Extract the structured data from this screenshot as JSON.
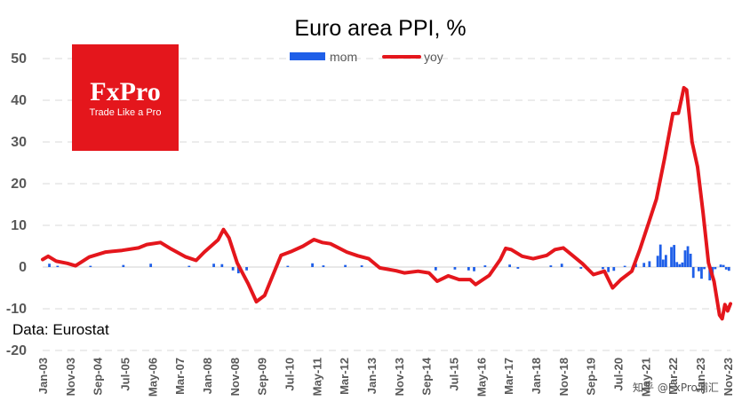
{
  "chart_data": {
    "type": "bar+line",
    "title": "Euro area PPI, %",
    "ylim": [
      -20,
      50
    ],
    "yticks": [
      50,
      40,
      30,
      20,
      10,
      0,
      -10,
      -20
    ],
    "grid": true,
    "legend": {
      "position": "top-center",
      "entries": [
        {
          "name": "mom",
          "type": "bar",
          "color": "#1f5fe8"
        },
        {
          "name": "yoy",
          "type": "line",
          "color": "#e4161c"
        }
      ]
    },
    "x_tick_labels": [
      "Jan-03",
      "Nov-03",
      "Sep-04",
      "Jul-05",
      "May-06",
      "Mar-07",
      "Jan-08",
      "Nov-08",
      "Sep-09",
      "Jul-10",
      "May-11",
      "Mar-12",
      "Jan-13",
      "Nov-13",
      "Sep-14",
      "Jul-15",
      "May-16",
      "Mar-17",
      "Jan-18",
      "Nov-18",
      "Sep-19",
      "Jul-20",
      "May-21",
      "Mar-22",
      "Jan-23",
      "Nov-23"
    ],
    "x_start": "2003-01",
    "x_end": "2023-11",
    "series": [
      {
        "name": "yoy",
        "type": "line",
        "points": [
          [
            "2003-01",
            1.8
          ],
          [
            "2003-03",
            2.6
          ],
          [
            "2003-06",
            1.4
          ],
          [
            "2003-10",
            0.9
          ],
          [
            "2004-01",
            0.3
          ],
          [
            "2004-06",
            2.4
          ],
          [
            "2004-12",
            3.6
          ],
          [
            "2005-06",
            4.0
          ],
          [
            "2005-12",
            4.6
          ],
          [
            "2006-03",
            5.4
          ],
          [
            "2006-08",
            5.9
          ],
          [
            "2006-12",
            4.3
          ],
          [
            "2007-05",
            2.5
          ],
          [
            "2007-09",
            1.6
          ],
          [
            "2007-12",
            3.6
          ],
          [
            "2008-05",
            6.5
          ],
          [
            "2008-07",
            9.0
          ],
          [
            "2008-09",
            7.0
          ],
          [
            "2008-12",
            1.0
          ],
          [
            "2009-04",
            -4.0
          ],
          [
            "2009-07",
            -8.3
          ],
          [
            "2009-10",
            -6.8
          ],
          [
            "2010-01",
            -2.0
          ],
          [
            "2010-04",
            2.8
          ],
          [
            "2010-08",
            3.8
          ],
          [
            "2010-12",
            5.0
          ],
          [
            "2011-04",
            6.6
          ],
          [
            "2011-07",
            5.9
          ],
          [
            "2011-10",
            5.6
          ],
          [
            "2012-04",
            3.6
          ],
          [
            "2012-08",
            2.7
          ],
          [
            "2012-12",
            2.0
          ],
          [
            "2013-04",
            -0.2
          ],
          [
            "2013-10",
            -0.9
          ],
          [
            "2014-01",
            -1.4
          ],
          [
            "2014-06",
            -1.0
          ],
          [
            "2014-10",
            -1.4
          ],
          [
            "2015-01",
            -3.4
          ],
          [
            "2015-05",
            -2.1
          ],
          [
            "2015-09",
            -3.0
          ],
          [
            "2016-01",
            -3.0
          ],
          [
            "2016-03",
            -4.2
          ],
          [
            "2016-08",
            -2.0
          ],
          [
            "2016-12",
            1.8
          ],
          [
            "2017-02",
            4.5
          ],
          [
            "2017-04",
            4.2
          ],
          [
            "2017-08",
            2.6
          ],
          [
            "2017-12",
            2.0
          ],
          [
            "2018-05",
            2.8
          ],
          [
            "2018-08",
            4.2
          ],
          [
            "2018-11",
            4.6
          ],
          [
            "2019-02",
            3.0
          ],
          [
            "2019-06",
            0.8
          ],
          [
            "2019-10",
            -1.8
          ],
          [
            "2020-02",
            -1.0
          ],
          [
            "2020-05",
            -5.0
          ],
          [
            "2020-08",
            -3.0
          ],
          [
            "2020-12",
            -1.0
          ],
          [
            "2021-03",
            4.3
          ],
          [
            "2021-06",
            10.3
          ],
          [
            "2021-09",
            16.3
          ],
          [
            "2021-12",
            26.2
          ],
          [
            "2022-03",
            36.8
          ],
          [
            "2022-05",
            36.9
          ],
          [
            "2022-07",
            43.0
          ],
          [
            "2022-08",
            42.5
          ],
          [
            "2022-10",
            30.0
          ],
          [
            "2022-12",
            24.0
          ],
          [
            "2023-02",
            13.0
          ],
          [
            "2023-04",
            1.0
          ],
          [
            "2023-06",
            -3.4
          ],
          [
            "2023-08",
            -11.5
          ],
          [
            "2023-09",
            -12.4
          ],
          [
            "2023-10",
            -9.0
          ],
          [
            "2023-11",
            -10.5
          ],
          [
            "2023-12",
            -8.8
          ]
        ]
      },
      {
        "name": "mom",
        "type": "bar",
        "points": [
          [
            "2003-03",
            0.8
          ],
          [
            "2003-06",
            0.3
          ],
          [
            "2004-06",
            0.3
          ],
          [
            "2005-06",
            0.5
          ],
          [
            "2006-04",
            0.8
          ],
          [
            "2007-06",
            0.3
          ],
          [
            "2008-03",
            0.8
          ],
          [
            "2008-06",
            0.7
          ],
          [
            "2008-10",
            -0.8
          ],
          [
            "2008-12",
            -1.5
          ],
          [
            "2009-03",
            -0.8
          ],
          [
            "2010-06",
            0.3
          ],
          [
            "2011-03",
            0.9
          ],
          [
            "2011-07",
            0.4
          ],
          [
            "2012-03",
            0.5
          ],
          [
            "2012-09",
            0.4
          ],
          [
            "2013-05",
            -0.3
          ],
          [
            "2014-12",
            -0.8
          ],
          [
            "2015-07",
            -0.6
          ],
          [
            "2015-12",
            -0.8
          ],
          [
            "2016-02",
            -1.0
          ],
          [
            "2016-06",
            0.4
          ],
          [
            "2017-03",
            0.6
          ],
          [
            "2017-06",
            -0.4
          ],
          [
            "2018-06",
            0.4
          ],
          [
            "2018-10",
            0.8
          ],
          [
            "2019-05",
            -0.4
          ],
          [
            "2020-01",
            -0.5
          ],
          [
            "2020-03",
            -1.2
          ],
          [
            "2020-05",
            -0.9
          ],
          [
            "2020-09",
            0.3
          ],
          [
            "2021-01",
            0.8
          ],
          [
            "2021-04",
            1.0
          ],
          [
            "2021-06",
            1.4
          ],
          [
            "2021-09",
            2.7
          ],
          [
            "2021-10",
            5.4
          ],
          [
            "2021-11",
            1.8
          ],
          [
            "2021-12",
            2.9
          ],
          [
            "2022-02",
            4.8
          ],
          [
            "2022-03",
            5.3
          ],
          [
            "2022-04",
            1.2
          ],
          [
            "2022-05",
            0.7
          ],
          [
            "2022-06",
            1.1
          ],
          [
            "2022-07",
            4.0
          ],
          [
            "2022-08",
            5.0
          ],
          [
            "2022-09",
            3.2
          ],
          [
            "2022-10",
            -2.6
          ],
          [
            "2022-12",
            -1.0
          ],
          [
            "2023-01",
            -2.8
          ],
          [
            "2023-02",
            -0.5
          ],
          [
            "2023-04",
            -3.2
          ],
          [
            "2023-05",
            -1.9
          ],
          [
            "2023-06",
            -0.5
          ],
          [
            "2023-08",
            0.6
          ],
          [
            "2023-09",
            0.5
          ],
          [
            "2023-10",
            -0.6
          ],
          [
            "2023-11",
            -0.9
          ]
        ]
      }
    ],
    "source": "Data: Eurostat"
  },
  "logo": {
    "brand": "FxPro",
    "tagline": "Trade Like a Pro",
    "color": "#e4161c"
  },
  "watermark": "知乎 @FxPro浦汇"
}
